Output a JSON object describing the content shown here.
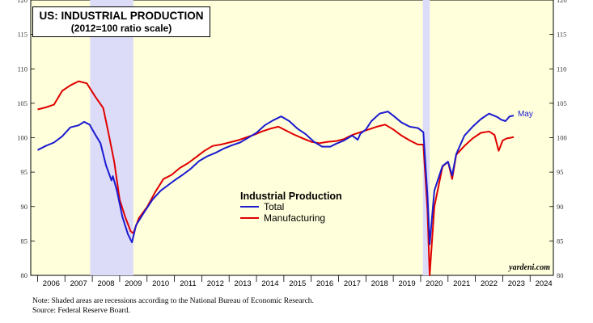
{
  "chart_data": {
    "type": "line",
    "title": "US: INDUSTRIAL PRODUCTION",
    "subtitle": "(2012=100 ratio scale)",
    "ylim": [
      80,
      120
    ],
    "yticks": [
      "80",
      "85",
      "90",
      "95",
      "100",
      "105",
      "110",
      "115",
      "120"
    ],
    "xlim": [
      2005.75,
      2024.85
    ],
    "x_tick_labels": [
      "2006",
      "2007",
      "2008",
      "2009",
      "2010",
      "2011",
      "2012",
      "2013",
      "2014",
      "2015",
      "2016",
      "2017",
      "2018",
      "2019",
      "2020",
      "2021",
      "2022",
      "2023",
      "2024"
    ],
    "recessions": [
      [
        2007.92,
        2009.5
      ],
      [
        2020.08,
        2020.33
      ]
    ],
    "legend_title": "Industrial Production",
    "end_label": "May",
    "watermark": "yardeni.com",
    "series": [
      {
        "name": "Total",
        "color": "#1a1ad0",
        "x": [
          2006.0,
          2006.3,
          2006.6,
          2006.9,
          2007.2,
          2007.5,
          2007.7,
          2007.9,
          2008.1,
          2008.3,
          2008.5,
          2008.7,
          2008.75,
          2008.9,
          2009.1,
          2009.3,
          2009.45,
          2009.6,
          2009.9,
          2010.2,
          2010.5,
          2010.8,
          2011.0,
          2011.3,
          2011.6,
          2011.9,
          2012.2,
          2012.5,
          2012.8,
          2013.1,
          2013.4,
          2013.7,
          2014.0,
          2014.3,
          2014.6,
          2014.9,
          2015.2,
          2015.5,
          2015.8,
          2016.1,
          2016.4,
          2016.7,
          2016.9,
          2017.2,
          2017.5,
          2017.7,
          2017.8,
          2018.0,
          2018.2,
          2018.5,
          2018.8,
          2019.0,
          2019.3,
          2019.6,
          2019.9,
          2020.1,
          2020.25,
          2020.33,
          2020.5,
          2020.8,
          2021.0,
          2021.15,
          2021.3,
          2021.6,
          2021.9,
          2022.2,
          2022.5,
          2022.8,
          2022.95,
          2023.1,
          2023.25,
          2023.4
        ],
        "values": [
          98.2,
          98.8,
          99.3,
          100.2,
          101.5,
          101.8,
          102.3,
          101.9,
          100.5,
          99.2,
          96.0,
          93.8,
          94.4,
          92.3,
          88.5,
          86.0,
          84.8,
          87.3,
          89.2,
          91.0,
          92.3,
          93.2,
          93.8,
          94.6,
          95.5,
          96.6,
          97.3,
          97.8,
          98.4,
          98.9,
          99.3,
          100.0,
          100.7,
          101.8,
          102.5,
          103.1,
          102.4,
          101.3,
          100.5,
          99.4,
          98.7,
          98.7,
          99.1,
          99.6,
          100.3,
          99.7,
          100.6,
          101.2,
          102.4,
          103.5,
          103.8,
          103.2,
          102.2,
          101.6,
          101.4,
          100.8,
          91.6,
          84.5,
          92.3,
          95.9,
          96.5,
          94.5,
          97.6,
          100.3,
          101.6,
          102.7,
          103.5,
          103.0,
          102.6,
          102.4,
          103.1,
          103.2
        ]
      },
      {
        "name": "Manufacturing",
        "color": "#e00000",
        "x": [
          2006.0,
          2006.3,
          2006.6,
          2006.9,
          2007.2,
          2007.5,
          2007.8,
          2008.1,
          2008.4,
          2008.6,
          2008.8,
          2009.0,
          2009.2,
          2009.4,
          2009.5,
          2009.7,
          2010.0,
          2010.3,
          2010.6,
          2010.9,
          2011.2,
          2011.5,
          2011.8,
          2012.1,
          2012.4,
          2012.7,
          2013.0,
          2013.3,
          2013.6,
          2013.9,
          2014.2,
          2014.5,
          2014.8,
          2015.1,
          2015.4,
          2015.7,
          2016.0,
          2016.3,
          2016.6,
          2016.9,
          2017.2,
          2017.5,
          2017.8,
          2018.1,
          2018.4,
          2018.7,
          2019.0,
          2019.3,
          2019.6,
          2019.9,
          2020.1,
          2020.25,
          2020.33,
          2020.5,
          2020.8,
          2021.0,
          2021.15,
          2021.3,
          2021.6,
          2021.9,
          2022.2,
          2022.5,
          2022.7,
          2022.85,
          2023.0,
          2023.15,
          2023.3,
          2023.4
        ],
        "values": [
          104.1,
          104.4,
          104.8,
          106.8,
          107.6,
          108.2,
          107.9,
          106.0,
          104.3,
          100.5,
          96.5,
          91.0,
          88.5,
          86.4,
          86.1,
          88.3,
          89.9,
          92.1,
          94.0,
          94.6,
          95.6,
          96.3,
          97.2,
          98.1,
          98.8,
          99.0,
          99.3,
          99.6,
          100.0,
          100.4,
          100.9,
          101.3,
          101.6,
          101.0,
          100.4,
          99.9,
          99.4,
          99.2,
          99.4,
          99.5,
          99.8,
          100.4,
          100.8,
          101.2,
          101.6,
          101.9,
          101.2,
          100.3,
          99.6,
          99.0,
          99.0,
          89.5,
          80.0,
          90.0,
          95.8,
          96.5,
          94.0,
          97.5,
          98.8,
          99.9,
          100.7,
          100.9,
          100.4,
          98.1,
          99.6,
          99.9,
          100.0,
          100.1
        ]
      }
    ]
  },
  "footer": {
    "note": "Note: Shaded areas are recessions according to the National Bureau of Economic Research.",
    "source": "Source: Federal Reserve Board."
  }
}
